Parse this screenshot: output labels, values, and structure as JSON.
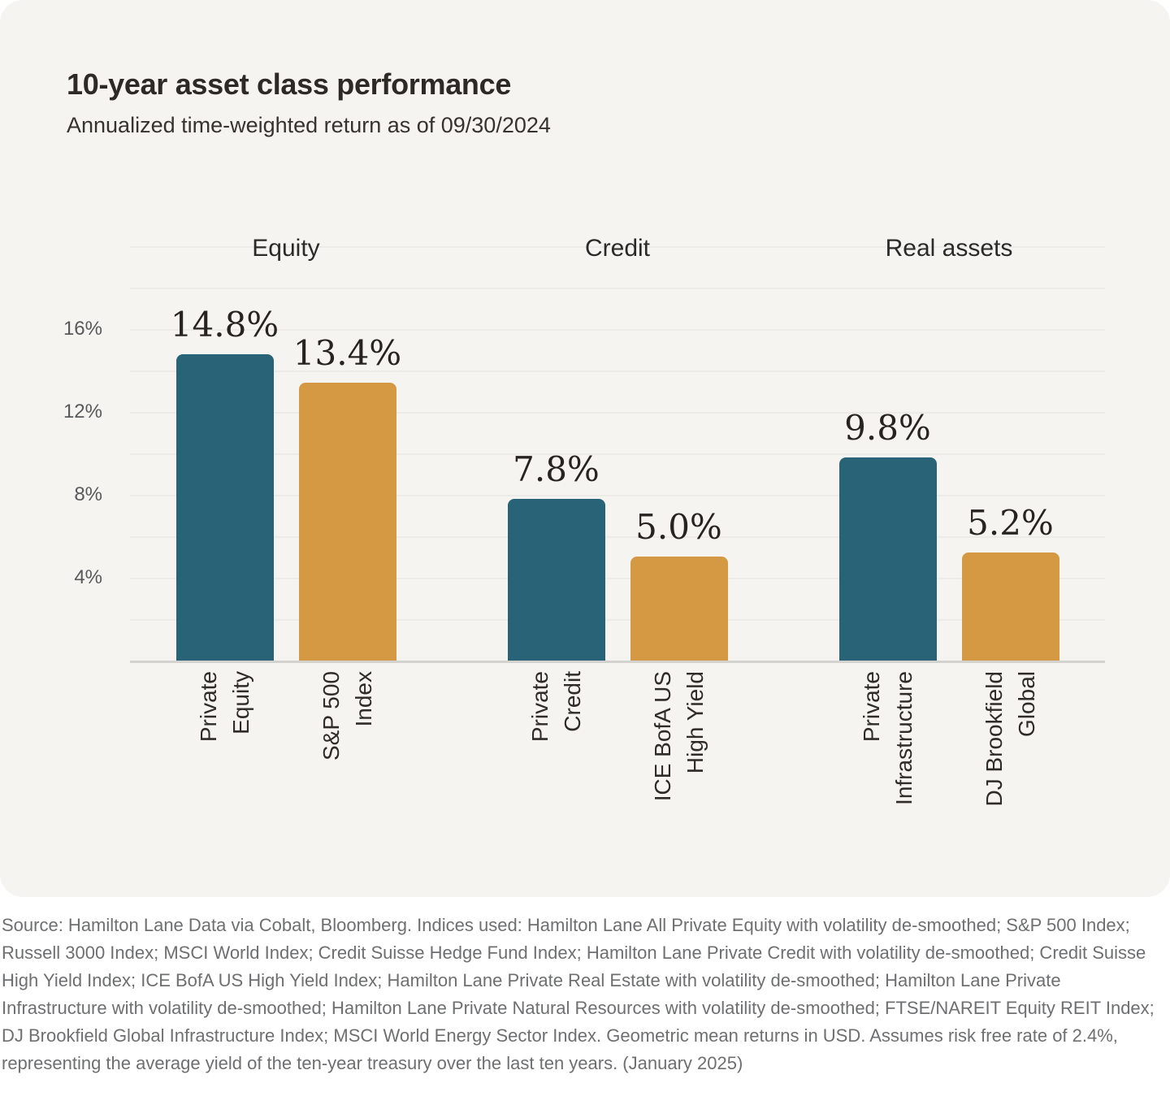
{
  "card": {
    "title": "10-year asset class performance",
    "subtitle": "Annualized time-weighted return as of 09/30/2024"
  },
  "chart_data": {
    "type": "bar",
    "title": "10-year asset class performance",
    "subtitle": "Annualized time-weighted return as of 09/30/2024",
    "ylim": [
      0,
      20
    ],
    "grid_step": 2,
    "grid": true,
    "legend_position": "none",
    "y_ticks": [
      {
        "value": 4,
        "label": "4%"
      },
      {
        "value": 8,
        "label": "8%"
      },
      {
        "value": 12,
        "label": "12%"
      },
      {
        "value": 16,
        "label": "16%"
      }
    ],
    "colors": {
      "private": "#296378",
      "index": "#d69943"
    },
    "groups": [
      {
        "label": "Equity",
        "bars": [
          {
            "name": "Private Equity",
            "label_lines": [
              "Private",
              "Equity"
            ],
            "value": 14.8,
            "display": "14.8%",
            "series": "private"
          },
          {
            "name": "S&P 500 Index",
            "label_lines": [
              "S&P 500",
              "Index"
            ],
            "value": 13.4,
            "display": "13.4%",
            "series": "index"
          }
        ]
      },
      {
        "label": "Credit",
        "bars": [
          {
            "name": "Private Credit",
            "label_lines": [
              "Private",
              "Credit"
            ],
            "value": 7.8,
            "display": "7.8%",
            "series": "private"
          },
          {
            "name": "ICE BofA US High Yield",
            "label_lines": [
              "ICE BofA US",
              "High Yield"
            ],
            "value": 5.0,
            "display": "5.0%",
            "series": "index"
          }
        ]
      },
      {
        "label": "Real assets",
        "bars": [
          {
            "name": "Private Infrastructure",
            "label_lines": [
              "Private",
              "Infrastructure"
            ],
            "value": 9.8,
            "display": "9.8%",
            "series": "private"
          },
          {
            "name": "DJ Brookfield Global",
            "label_lines": [
              "DJ Brookfield",
              "Global"
            ],
            "value": 5.2,
            "display": "5.2%",
            "series": "index"
          }
        ]
      }
    ]
  },
  "footer": {
    "text": "Source: Hamilton Lane Data via Cobalt, Bloomberg. Indices used: Hamilton Lane All Private Equity with volatility de-smoothed; S&P 500 Index; Russell 3000 Index; MSCI World Index; Credit Suisse Hedge Fund Index; Hamilton Lane Private Credit with volatility de-smoothed; Credit Suisse High Yield Index; ICE BofA US High Yield Index; Hamilton Lane Private Real Estate with volatility de-smoothed; Hamilton Lane Private Infrastructure with volatility de-smoothed; Hamilton Lane Private Natural Resources with volatility de-smoothed; FTSE/NAREIT Equity REIT Index; DJ Brookfield Global Infrastructure Index; MSCI World Energy Sector Index. Geometric mean returns in USD. Assumes risk free rate of 2.4%, representing the average yield of the ten-year treasury over the last ten years. (January 2025)"
  }
}
